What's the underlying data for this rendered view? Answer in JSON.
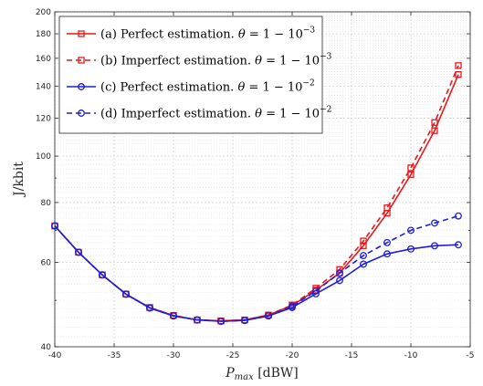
{
  "chart_data": {
    "type": "line",
    "xlabel_main": "P",
    "xlabel_sub": "max",
    "xlabel_unit": " [dBW]",
    "ylabel": "J/kbit",
    "xlim": [
      -40,
      -5
    ],
    "ylim": [
      40,
      200
    ],
    "yscale": "log",
    "grid": true,
    "legend_position": "top-left",
    "x_ticks": [
      "-40",
      "-35",
      "-30",
      "-25",
      "-20",
      "-15",
      "-10",
      "-5"
    ],
    "x_tick_values": [
      -40,
      -35,
      -30,
      -25,
      -20,
      -15,
      -10,
      -5
    ],
    "y_ticks": [
      "40",
      "60",
      "80",
      "100",
      "120",
      "140",
      "160",
      "180",
      "200"
    ],
    "y_tick_values": [
      40,
      60,
      80,
      100,
      120,
      140,
      160,
      180,
      200
    ],
    "y_minor_ticks": [
      50,
      70,
      90
    ],
    "series": [
      {
        "name": "(a) Perfect estimation. θ = 1 − 10⁻³",
        "legend_prefix": "(a) Perfect estimation. ",
        "exponent": "−3",
        "color": "#e41a1c",
        "marker": "square",
        "dash": "solid",
        "x": [
          -40,
          -38,
          -36,
          -34,
          -32,
          -30,
          -28,
          -26,
          -24,
          -22,
          -20,
          -18,
          -16,
          -14,
          -12,
          -10,
          -8,
          -6
        ],
        "values": [
          71.5,
          63.0,
          56.5,
          51.5,
          48.3,
          46.5,
          45.5,
          45.3,
          45.5,
          46.6,
          48.8,
          52.5,
          57.0,
          65.0,
          76.0,
          91.5,
          113.0,
          148.0
        ]
      },
      {
        "name": "(b) Imperfect estimation. θ = 1 − 10⁻³",
        "legend_prefix": "(b) Imperfect estimation. ",
        "exponent": "−3",
        "color": "#e41a1c",
        "marker": "square",
        "dash": "dashed",
        "x": [
          -40,
          -38,
          -36,
          -34,
          -32,
          -30,
          -28,
          -26,
          -24,
          -22,
          -20,
          -18,
          -16,
          -14,
          -12,
          -10,
          -8,
          -6
        ],
        "values": [
          71.5,
          63.0,
          56.5,
          51.5,
          48.3,
          46.5,
          45.5,
          45.3,
          45.5,
          46.6,
          48.9,
          53.0,
          58.0,
          66.5,
          78.0,
          94.5,
          117.5,
          154.5
        ]
      },
      {
        "name": "(c) Perfect estimation. θ = 1 − 10⁻²",
        "legend_prefix": "(c) Perfect estimation. ",
        "exponent": "−2",
        "color": "#1f1fd6",
        "marker": "circle",
        "dash": "solid",
        "x": [
          -40,
          -38,
          -36,
          -34,
          -32,
          -30,
          -28,
          -26,
          -24,
          -22,
          -20,
          -18,
          -16,
          -14,
          -12,
          -10,
          -8,
          -6
        ],
        "values": [
          71.5,
          63.0,
          56.5,
          51.5,
          48.2,
          46.4,
          45.5,
          45.2,
          45.4,
          46.4,
          48.3,
          51.6,
          55.0,
          59.5,
          62.5,
          64.0,
          65.0,
          65.3
        ]
      },
      {
        "name": "(d) Imperfect estimation. θ = 1 − 10⁻²",
        "legend_prefix": "(d) Imperfect estimation. ",
        "exponent": "−2",
        "color": "#1f1fd6",
        "marker": "circle",
        "dash": "dashed",
        "x": [
          -40,
          -38,
          -36,
          -34,
          -32,
          -30,
          -28,
          -26,
          -24,
          -22,
          -20,
          -18,
          -16,
          -14,
          -12,
          -10,
          -8,
          -6
        ],
        "values": [
          71.5,
          63.0,
          56.5,
          51.5,
          48.2,
          46.4,
          45.5,
          45.2,
          45.4,
          46.4,
          48.6,
          52.3,
          57.0,
          62.0,
          66.0,
          70.0,
          72.5,
          75.0
        ]
      }
    ]
  }
}
